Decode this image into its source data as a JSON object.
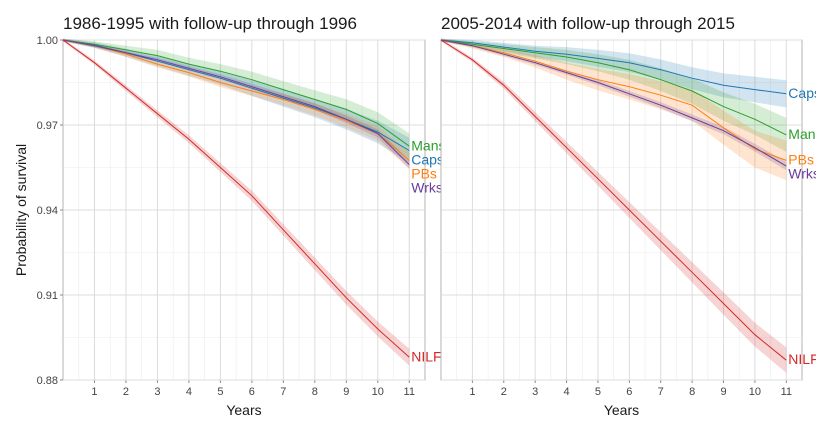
{
  "ylabel": "Probability of survival",
  "chart_data": [
    {
      "type": "line",
      "title": "1986-1995 with follow-up through 1996",
      "xlabel": "Years",
      "ylabel": "Probability of survival",
      "xlim": [
        0,
        11.5
      ],
      "ylim": [
        0.88,
        1.0
      ],
      "x_ticks": [
        1,
        2,
        3,
        4,
        5,
        6,
        7,
        8,
        9,
        10,
        11
      ],
      "y_ticks": [
        0.88,
        0.91,
        0.94,
        0.97,
        1.0
      ],
      "y_tick_labels": [
        "0.88",
        "0.91",
        "0.94",
        "0.97",
        "1.00"
      ],
      "grid": true,
      "x": [
        0,
        1,
        2,
        3,
        4,
        5,
        6,
        7,
        8,
        9,
        10,
        11
      ],
      "series": [
        {
          "name": "Mans",
          "color": "#2ca02c",
          "values": [
            1.0,
            0.9985,
            0.9965,
            0.9945,
            0.9915,
            0.989,
            0.986,
            0.9825,
            0.979,
            0.9755,
            0.9705,
            0.9625
          ],
          "ci": [
            0.0005,
            0.001,
            0.0015,
            0.002,
            0.0022,
            0.0025,
            0.0028,
            0.003,
            0.0033,
            0.0036,
            0.004,
            0.0045
          ]
        },
        {
          "name": "Caps",
          "color": "#1f77b4",
          "values": [
            1.0,
            0.9982,
            0.9955,
            0.9925,
            0.9895,
            0.9865,
            0.983,
            0.9795,
            0.976,
            0.972,
            0.9675,
            0.961
          ],
          "ci": [
            0.0005,
            0.001,
            0.0014,
            0.0018,
            0.0021,
            0.0024,
            0.0027,
            0.003,
            0.0033,
            0.0036,
            0.004,
            0.0045
          ]
        },
        {
          "name": "PBs",
          "color": "#ff7f0e",
          "values": [
            1.0,
            0.998,
            0.995,
            0.9915,
            0.9885,
            0.985,
            0.982,
            0.979,
            0.9755,
            0.9715,
            0.967,
            0.9575
          ],
          "ci": [
            0.0005,
            0.0008,
            0.001,
            0.0012,
            0.0014,
            0.0016,
            0.0018,
            0.002,
            0.0022,
            0.0024,
            0.0026,
            0.003
          ]
        },
        {
          "name": "Wrks",
          "color": "#6a3d9a",
          "values": [
            1.0,
            0.998,
            0.9955,
            0.993,
            0.99,
            0.987,
            0.9835,
            0.98,
            0.9765,
            0.972,
            0.967,
            0.956
          ],
          "ci": [
            0.0003,
            0.0005,
            0.0006,
            0.0007,
            0.0008,
            0.0009,
            0.001,
            0.0011,
            0.0012,
            0.0013,
            0.0014,
            0.0015
          ]
        },
        {
          "name": "NILFs",
          "color": "#d62728",
          "values": [
            1.0,
            0.992,
            0.983,
            0.974,
            0.965,
            0.955,
            0.945,
            0.933,
            0.921,
            0.909,
            0.898,
            0.888
          ],
          "ci": [
            0.0005,
            0.0008,
            0.001,
            0.0012,
            0.0014,
            0.0016,
            0.0018,
            0.002,
            0.0022,
            0.0024,
            0.0026,
            0.003
          ]
        }
      ]
    },
    {
      "type": "line",
      "title": "2005-2014 with follow-up through 2015",
      "xlabel": "Years",
      "xlim": [
        0,
        11.5
      ],
      "ylim": [
        0.88,
        1.0
      ],
      "x_ticks": [
        1,
        2,
        3,
        4,
        5,
        6,
        7,
        8,
        9,
        10,
        11
      ],
      "grid": true,
      "x": [
        0,
        1,
        2,
        3,
        4,
        5,
        6,
        7,
        8,
        9,
        10,
        11
      ],
      "series": [
        {
          "name": "Caps",
          "color": "#1f77b4",
          "values": [
            1.0,
            0.999,
            0.9975,
            0.996,
            0.995,
            0.9935,
            0.992,
            0.9895,
            0.9865,
            0.984,
            0.9825,
            0.981
          ],
          "ci": [
            0.0005,
            0.001,
            0.0015,
            0.002,
            0.0025,
            0.003,
            0.0033,
            0.0036,
            0.0039,
            0.0042,
            0.0045,
            0.0048
          ]
        },
        {
          "name": "Mans",
          "color": "#2ca02c",
          "values": [
            1.0,
            0.9985,
            0.997,
            0.9955,
            0.994,
            0.992,
            0.9895,
            0.986,
            0.982,
            0.9765,
            0.972,
            0.9665
          ],
          "ci": [
            0.0005,
            0.001,
            0.0015,
            0.002,
            0.0025,
            0.003,
            0.0035,
            0.004,
            0.0045,
            0.005,
            0.0055,
            0.006
          ]
        },
        {
          "name": "PBs",
          "color": "#ff7f0e",
          "values": [
            1.0,
            0.998,
            0.9955,
            0.9925,
            0.989,
            0.986,
            0.9835,
            0.9805,
            0.977,
            0.969,
            0.9615,
            0.9575
          ],
          "ci": [
            0.0005,
            0.001,
            0.0015,
            0.0022,
            0.003,
            0.0038,
            0.0045,
            0.005,
            0.0055,
            0.006,
            0.0065,
            0.007
          ]
        },
        {
          "name": "Wrks",
          "color": "#6a3d9a",
          "values": [
            1.0,
            0.998,
            0.995,
            0.992,
            0.9885,
            0.985,
            0.981,
            0.977,
            0.9725,
            0.968,
            0.962,
            0.9555
          ],
          "ci": [
            0.0003,
            0.0005,
            0.0006,
            0.0007,
            0.0008,
            0.0009,
            0.001,
            0.0011,
            0.0012,
            0.0013,
            0.0014,
            0.0015
          ]
        },
        {
          "name": "NILFs",
          "color": "#d62728",
          "values": [
            1.0,
            0.993,
            0.984,
            0.973,
            0.962,
            0.951,
            0.94,
            0.929,
            0.918,
            0.907,
            0.896,
            0.887
          ],
          "ci": [
            0.0005,
            0.0008,
            0.0012,
            0.0016,
            0.002,
            0.0024,
            0.0028,
            0.0032,
            0.0036,
            0.004,
            0.0042,
            0.0045
          ]
        }
      ]
    }
  ]
}
